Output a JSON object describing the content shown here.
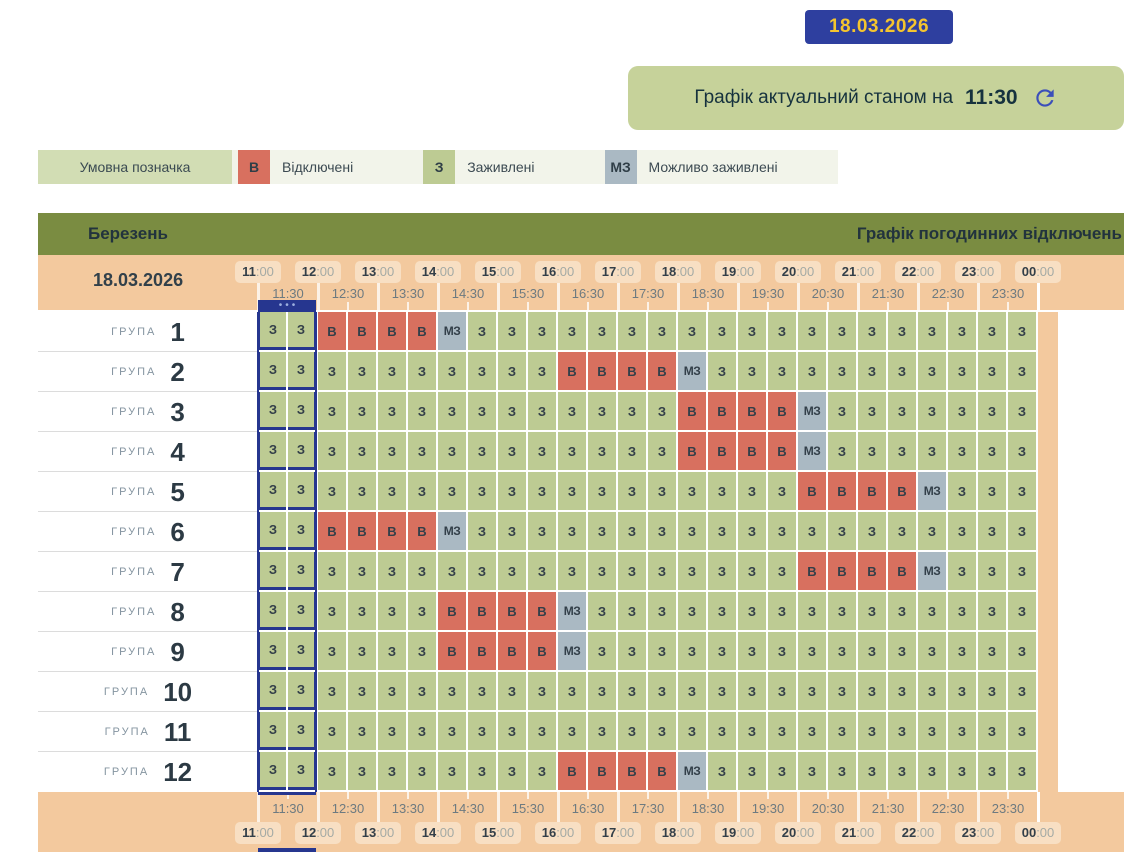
{
  "colors": {
    "accent_blue": "#26368f",
    "badge_bg": "#2e3f9f",
    "badge_text": "#f5c52e",
    "banner_bg": "#c6d29a",
    "header_olive": "#7a8c41",
    "band_peach": "#f3c99e",
    "pill_bg": "#f8dfc3"
  },
  "date_badge": {
    "label": "18.03.2026"
  },
  "banner": {
    "text": "Графік актуальний станом на",
    "time": "11:30",
    "refresh_icon": "refresh-icon"
  },
  "legend": {
    "label": "Умовна позначка",
    "items": [
      {
        "code": "В",
        "label": "Відключені",
        "color": "#d8705f"
      },
      {
        "code": "З",
        "label": "Заживлені",
        "color": "#bdcb93"
      },
      {
        "code": "МЗ",
        "label": "Можливо заживлені",
        "color": "#aab9c3"
      }
    ]
  },
  "schedule": {
    "month": "Березень",
    "title": "Графік погодинних відключень",
    "date": "18.03.2026",
    "group_prefix": "ГРУПА",
    "marker_dots": "•••",
    "state_colors": {
      "З": "#bdcb93",
      "В": "#d8705f",
      "МЗ": "#aab9c3"
    },
    "state_names": {
      "З": "powered",
      "В": "disconnected",
      "МЗ": "maybe-powered"
    },
    "hour_labels": [
      {
        "hour": "11",
        "minutes": ":00"
      },
      {
        "hour": "12",
        "minutes": ":00"
      },
      {
        "hour": "13",
        "minutes": ":00"
      },
      {
        "hour": "14",
        "minutes": ":00"
      },
      {
        "hour": "15",
        "minutes": ":00"
      },
      {
        "hour": "16",
        "minutes": ":00"
      },
      {
        "hour": "17",
        "minutes": ":00"
      },
      {
        "hour": "18",
        "minutes": ":00"
      },
      {
        "hour": "19",
        "minutes": ":00"
      },
      {
        "hour": "20",
        "minutes": ":00"
      },
      {
        "hour": "21",
        "minutes": ":00"
      },
      {
        "hour": "22",
        "minutes": ":00"
      },
      {
        "hour": "23",
        "minutes": ":00"
      },
      {
        "hour": "00",
        "minutes": ":00"
      }
    ],
    "half_hour_labels": [
      "11:30",
      "12:30",
      "13:30",
      "14:30",
      "15:30",
      "16:30",
      "17:30",
      "18:30",
      "19:30",
      "20:30",
      "21:30",
      "22:30",
      "23:30"
    ],
    "groups": [
      {
        "number": "1",
        "cells": [
          "З",
          "З",
          "В",
          "В",
          "В",
          "В",
          "МЗ",
          "З",
          "З",
          "З",
          "З",
          "З",
          "З",
          "З",
          "З",
          "З",
          "З",
          "З",
          "З",
          "З",
          "З",
          "З",
          "З",
          "З",
          "З",
          "З"
        ]
      },
      {
        "number": "2",
        "cells": [
          "З",
          "З",
          "З",
          "З",
          "З",
          "З",
          "З",
          "З",
          "З",
          "З",
          "В",
          "В",
          "В",
          "В",
          "МЗ",
          "З",
          "З",
          "З",
          "З",
          "З",
          "З",
          "З",
          "З",
          "З",
          "З",
          "З"
        ]
      },
      {
        "number": "3",
        "cells": [
          "З",
          "З",
          "З",
          "З",
          "З",
          "З",
          "З",
          "З",
          "З",
          "З",
          "З",
          "З",
          "З",
          "З",
          "В",
          "В",
          "В",
          "В",
          "МЗ",
          "З",
          "З",
          "З",
          "З",
          "З",
          "З",
          "З"
        ]
      },
      {
        "number": "4",
        "cells": [
          "З",
          "З",
          "З",
          "З",
          "З",
          "З",
          "З",
          "З",
          "З",
          "З",
          "З",
          "З",
          "З",
          "З",
          "В",
          "В",
          "В",
          "В",
          "МЗ",
          "З",
          "З",
          "З",
          "З",
          "З",
          "З",
          "З"
        ]
      },
      {
        "number": "5",
        "cells": [
          "З",
          "З",
          "З",
          "З",
          "З",
          "З",
          "З",
          "З",
          "З",
          "З",
          "З",
          "З",
          "З",
          "З",
          "З",
          "З",
          "З",
          "З",
          "В",
          "В",
          "В",
          "В",
          "МЗ",
          "З",
          "З",
          "З"
        ]
      },
      {
        "number": "6",
        "cells": [
          "З",
          "З",
          "В",
          "В",
          "В",
          "В",
          "МЗ",
          "З",
          "З",
          "З",
          "З",
          "З",
          "З",
          "З",
          "З",
          "З",
          "З",
          "З",
          "З",
          "З",
          "З",
          "З",
          "З",
          "З",
          "З",
          "З"
        ]
      },
      {
        "number": "7",
        "cells": [
          "З",
          "З",
          "З",
          "З",
          "З",
          "З",
          "З",
          "З",
          "З",
          "З",
          "З",
          "З",
          "З",
          "З",
          "З",
          "З",
          "З",
          "З",
          "В",
          "В",
          "В",
          "В",
          "МЗ",
          "З",
          "З",
          "З"
        ]
      },
      {
        "number": "8",
        "cells": [
          "З",
          "З",
          "З",
          "З",
          "З",
          "З",
          "В",
          "В",
          "В",
          "В",
          "МЗ",
          "З",
          "З",
          "З",
          "З",
          "З",
          "З",
          "З",
          "З",
          "З",
          "З",
          "З",
          "З",
          "З",
          "З",
          "З"
        ]
      },
      {
        "number": "9",
        "cells": [
          "З",
          "З",
          "З",
          "З",
          "З",
          "З",
          "В",
          "В",
          "В",
          "В",
          "МЗ",
          "З",
          "З",
          "З",
          "З",
          "З",
          "З",
          "З",
          "З",
          "З",
          "З",
          "З",
          "З",
          "З",
          "З",
          "З"
        ]
      },
      {
        "number": "10",
        "cells": [
          "З",
          "З",
          "З",
          "З",
          "З",
          "З",
          "З",
          "З",
          "З",
          "З",
          "З",
          "З",
          "З",
          "З",
          "З",
          "З",
          "З",
          "З",
          "З",
          "З",
          "З",
          "З",
          "З",
          "З",
          "З",
          "З"
        ]
      },
      {
        "number": "11",
        "cells": [
          "З",
          "З",
          "З",
          "З",
          "З",
          "З",
          "З",
          "З",
          "З",
          "З",
          "З",
          "З",
          "З",
          "З",
          "З",
          "З",
          "З",
          "З",
          "З",
          "З",
          "З",
          "З",
          "З",
          "З",
          "З",
          "З"
        ]
      },
      {
        "number": "12",
        "cells": [
          "З",
          "З",
          "З",
          "З",
          "З",
          "З",
          "З",
          "З",
          "З",
          "З",
          "В",
          "В",
          "В",
          "В",
          "МЗ",
          "З",
          "З",
          "З",
          "З",
          "З",
          "З",
          "З",
          "З",
          "З",
          "З",
          "З"
        ]
      }
    ]
  }
}
